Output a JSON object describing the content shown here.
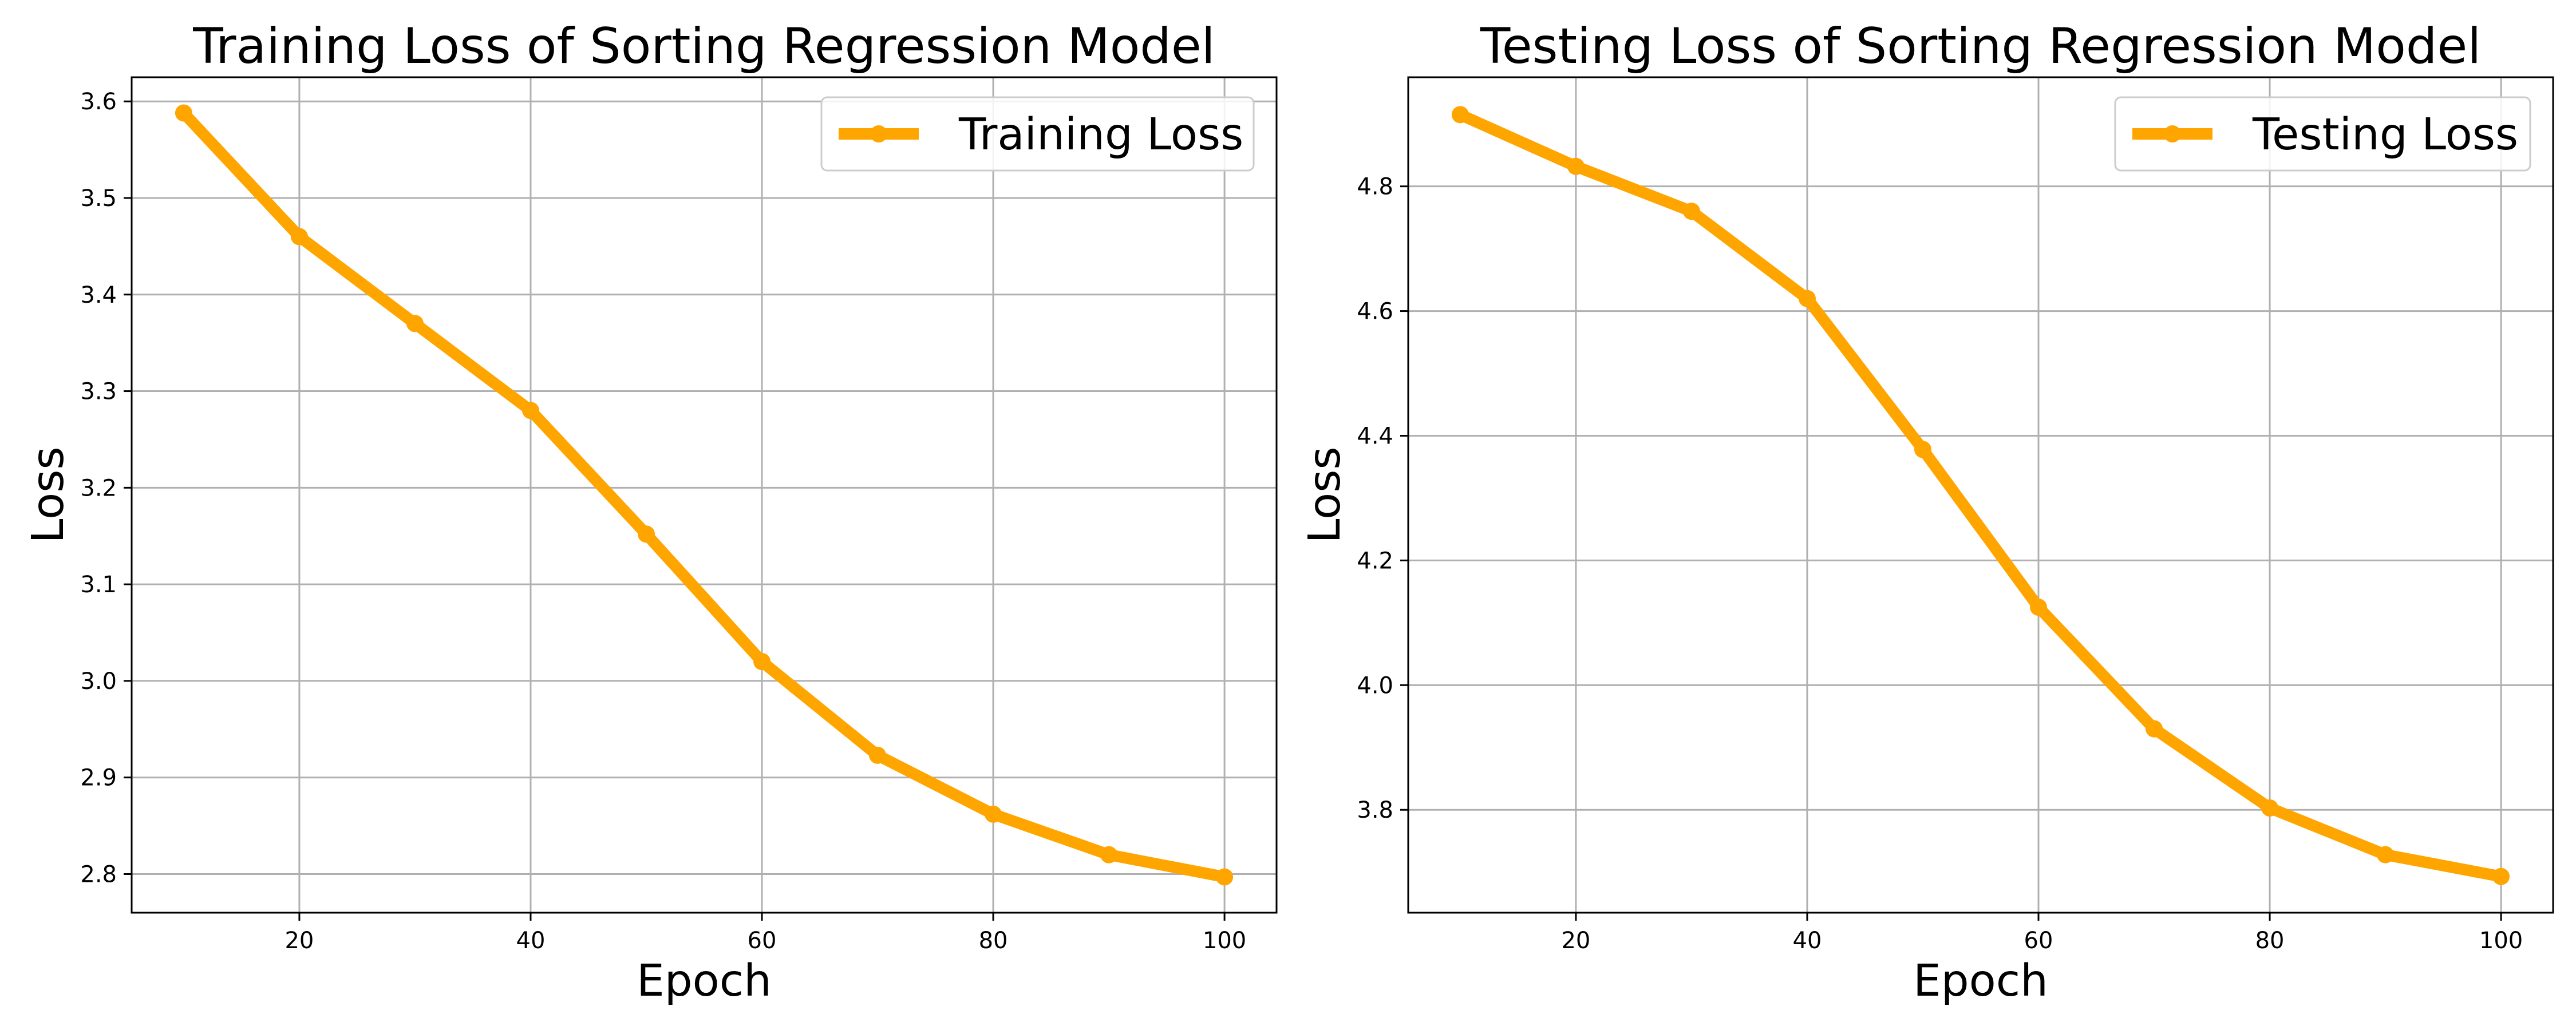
{
  "chart_data": [
    {
      "type": "line",
      "title": "Training Loss of Sorting Regression Model",
      "xlabel": "Epoch",
      "ylabel": "Loss",
      "xlim": [
        5.5,
        104.5
      ],
      "ylim": [
        2.76,
        3.625
      ],
      "xticks": [
        20,
        40,
        60,
        80,
        100
      ],
      "yticks": [
        2.8,
        2.9,
        3.0,
        3.1,
        3.2,
        3.3,
        3.4,
        3.5,
        3.6
      ],
      "grid": true,
      "legend_position": "upper right",
      "series": [
        {
          "name": "Training Loss",
          "color": "#ffa500",
          "marker": "circle",
          "x": [
            10,
            20,
            30,
            40,
            50,
            60,
            70,
            80,
            90,
            100
          ],
          "y": [
            3.588,
            3.46,
            3.37,
            3.28,
            3.152,
            3.02,
            2.923,
            2.862,
            2.82,
            2.797
          ]
        }
      ]
    },
    {
      "type": "line",
      "title": "Testing Loss of Sorting Regression Model",
      "xlabel": "Epoch",
      "ylabel": "Loss",
      "xlim": [
        5.5,
        104.5
      ],
      "ylim": [
        3.635,
        4.975
      ],
      "xticks": [
        20,
        40,
        60,
        80,
        100
      ],
      "yticks": [
        3.8,
        4.0,
        4.2,
        4.4,
        4.6,
        4.8
      ],
      "grid": true,
      "legend_position": "upper right",
      "series": [
        {
          "name": "Testing Loss",
          "color": "#ffa500",
          "marker": "circle",
          "x": [
            10,
            20,
            30,
            40,
            50,
            60,
            70,
            80,
            90,
            100
          ],
          "y": [
            4.915,
            4.832,
            4.76,
            4.62,
            4.378,
            4.125,
            3.93,
            3.803,
            3.728,
            3.693
          ]
        }
      ]
    }
  ]
}
